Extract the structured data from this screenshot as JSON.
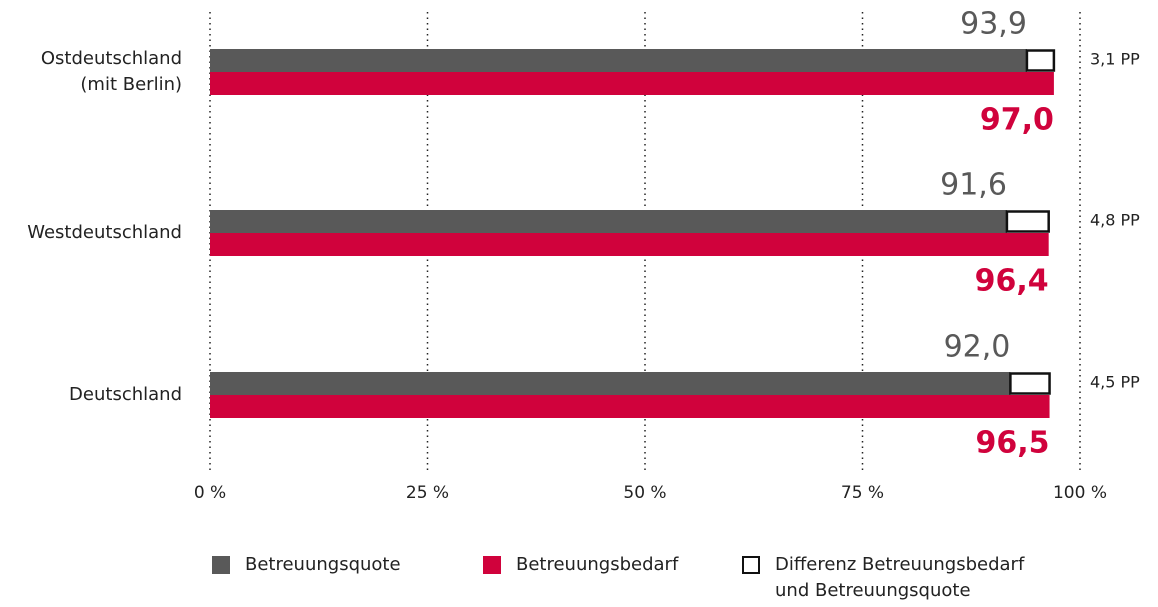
{
  "chart_data": {
    "type": "bar",
    "categories": [
      "Ostdeutschland\n(mit Berlin)",
      "Westdeutschland",
      "Deutschland"
    ],
    "series": [
      {
        "name": "Betreuungsquote",
        "color": "#595959",
        "values": [
          93.9,
          91.6,
          92.0
        ],
        "value_labels": [
          "93,9",
          "91,6",
          "92,0"
        ]
      },
      {
        "name": "Betreuungsbedarf",
        "color": "#d0023c",
        "values": [
          97.0,
          96.4,
          96.5
        ],
        "value_labels": [
          "97,0",
          "96,4",
          "96,5"
        ]
      },
      {
        "name": "Differenz Betreuungsbedarf\nund Betreuungsquote",
        "color": "#ffffff",
        "values": [
          3.1,
          4.8,
          4.5
        ],
        "value_labels": [
          "3,1 PP",
          "4,8 PP",
          "4,5 PP"
        ]
      }
    ],
    "xlim": [
      0,
      100
    ],
    "xticks": [
      {
        "value": 0,
        "label": "0 %"
      },
      {
        "value": 25,
        "label": "25 %"
      },
      {
        "value": 50,
        "label": "50 %"
      },
      {
        "value": 75,
        "label": "75 %"
      },
      {
        "value": 100,
        "label": "100 %"
      }
    ],
    "grid": true
  }
}
